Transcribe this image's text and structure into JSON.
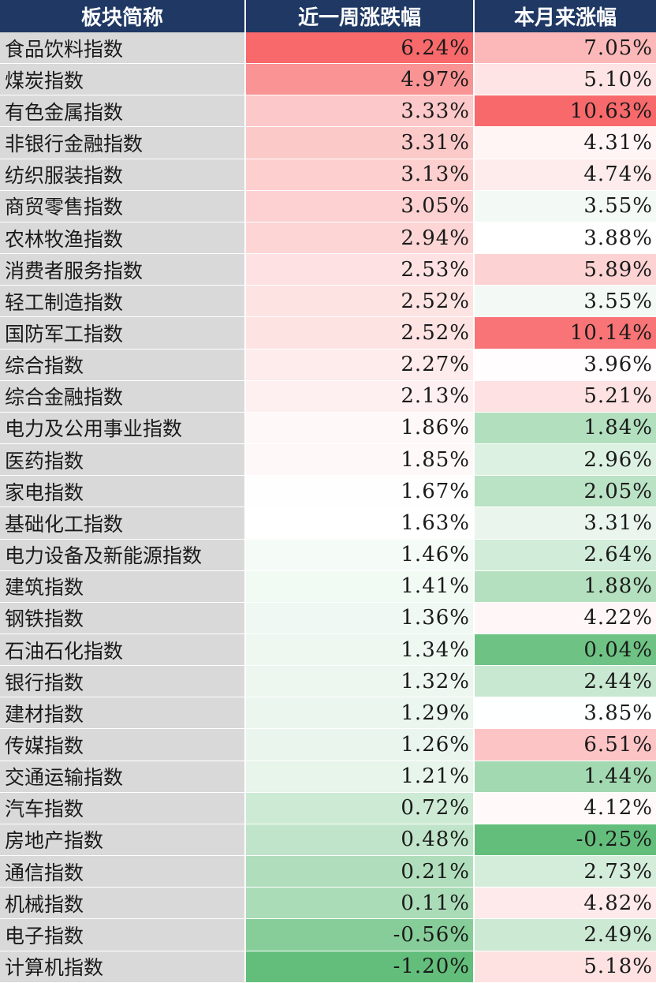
{
  "chart_data": {
    "type": "table",
    "columns": [
      "板块简称",
      "近一周涨跌幅",
      "本月来涨幅"
    ],
    "rows": [
      {
        "name": "食品饮料指数",
        "week": "6.24%",
        "month": "7.05%"
      },
      {
        "name": "煤炭指数",
        "week": "4.97%",
        "month": "5.10%"
      },
      {
        "name": "有色金属指数",
        "week": "3.33%",
        "month": "10.63%"
      },
      {
        "name": "非银行金融指数",
        "week": "3.31%",
        "month": "4.31%"
      },
      {
        "name": "纺织服装指数",
        "week": "3.13%",
        "month": "4.74%"
      },
      {
        "name": "商贸零售指数",
        "week": "3.05%",
        "month": "3.55%"
      },
      {
        "name": "农林牧渔指数",
        "week": "2.94%",
        "month": "3.88%"
      },
      {
        "name": "消费者服务指数",
        "week": "2.53%",
        "month": "5.89%"
      },
      {
        "name": "轻工制造指数",
        "week": "2.52%",
        "month": "3.55%"
      },
      {
        "name": "国防军工指数",
        "week": "2.52%",
        "month": "10.14%"
      },
      {
        "name": "综合指数",
        "week": "2.27%",
        "month": "3.96%"
      },
      {
        "name": "综合金融指数",
        "week": "2.13%",
        "month": "5.21%"
      },
      {
        "name": "电力及公用事业指数",
        "week": "1.86%",
        "month": "1.84%"
      },
      {
        "name": "医药指数",
        "week": "1.85%",
        "month": "2.96%"
      },
      {
        "name": "家电指数",
        "week": "1.67%",
        "month": "2.05%"
      },
      {
        "name": "基础化工指数",
        "week": "1.63%",
        "month": "3.31%"
      },
      {
        "name": "电力设备及新能源指数",
        "week": "1.46%",
        "month": "2.64%"
      },
      {
        "name": "建筑指数",
        "week": "1.41%",
        "month": "1.88%"
      },
      {
        "name": "钢铁指数",
        "week": "1.36%",
        "month": "4.22%"
      },
      {
        "name": "石油石化指数",
        "week": "1.34%",
        "month": "0.04%"
      },
      {
        "name": "银行指数",
        "week": "1.32%",
        "month": "2.44%"
      },
      {
        "name": "建材指数",
        "week": "1.29%",
        "month": "3.85%"
      },
      {
        "name": "传媒指数",
        "week": "1.26%",
        "month": "6.51%"
      },
      {
        "name": "交通运输指数",
        "week": "1.21%",
        "month": "1.44%"
      },
      {
        "name": "汽车指数",
        "week": "0.72%",
        "month": "4.12%"
      },
      {
        "name": "房地产指数",
        "week": "0.48%",
        "month": "-0.25%"
      },
      {
        "name": "通信指数",
        "week": "0.21%",
        "month": "2.73%"
      },
      {
        "name": "机械指数",
        "week": "0.11%",
        "month": "4.82%"
      },
      {
        "name": "电子指数",
        "week": "-0.56%",
        "month": "2.49%"
      },
      {
        "name": "计算机指数",
        "week": "-1.20%",
        "month": "5.18%"
      }
    ],
    "colors": {
      "header_bg": "#1f3864",
      "header_text": "#ffffff",
      "name_bg": "#d9d9d9",
      "scale_low": "#63be7b",
      "scale_mid": "#ffffff",
      "scale_high": "#f8696b"
    }
  }
}
